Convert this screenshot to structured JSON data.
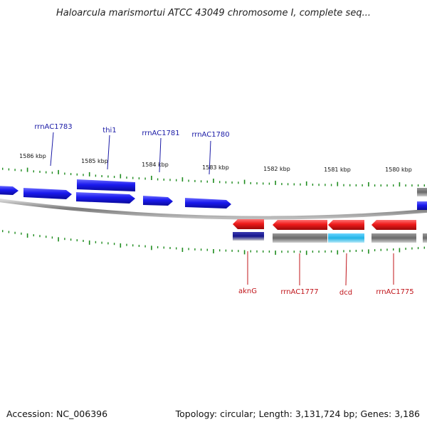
{
  "title": "Haloarcula marismortui ATCC 43049 chromosome I, complete seq...",
  "footer": {
    "accession": "Accession: NC_006396",
    "summary": "Topology: circular; Length: 3,131,724 bp; Genes: 3,186"
  },
  "ticks": [
    "1586 kbp",
    "1585 kbp",
    "1584 kbp",
    "1583 kbp",
    "1582 kbp",
    "1581 kbp",
    "1580 kbp"
  ],
  "genes_forward": [
    {
      "label": "rrnAC1783"
    },
    {
      "label": "thi1"
    },
    {
      "label": "rrnAC1781"
    },
    {
      "label": "rrnAC1780"
    }
  ],
  "genes_reverse": [
    {
      "label": "aknG"
    },
    {
      "label": "rrnAC1777"
    },
    {
      "label": "dcd"
    },
    {
      "label": "rrnAC1775"
    }
  ],
  "colors": {
    "forward": "#1a1aee",
    "reverse": "#ee1a1a",
    "label_forward": "#1a1aa6",
    "label_reverse": "#c0141a",
    "tick": "#1e8c1e",
    "backbone": "#888888",
    "cog_gray": "#6e6e6e",
    "cog_cyan": "#22b4e6",
    "cog_navy": "#14148c"
  }
}
